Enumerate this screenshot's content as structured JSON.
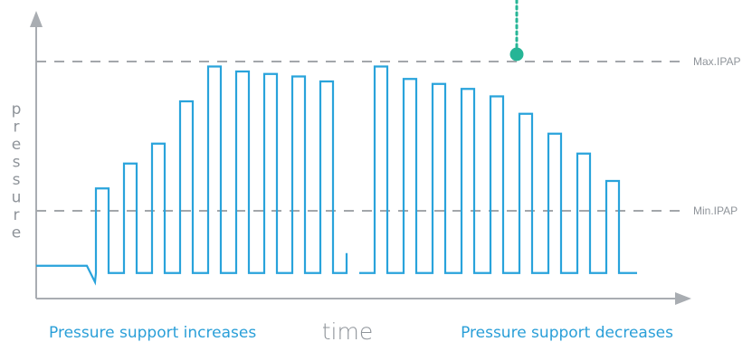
{
  "diagram": {
    "type": "line",
    "title": "",
    "y_axis_label": "pressure",
    "x_axis_label": "time",
    "reference_lines": [
      {
        "label": "Max.IPAP",
        "level": 0.88
      },
      {
        "label": "Min.IPAP",
        "level": 0.28
      }
    ],
    "baseline_level": 0.03,
    "phases": [
      {
        "label": "Pressure support increases",
        "pulse_peaks": [
          0.37,
          0.47,
          0.55,
          0.72,
          0.86,
          0.84,
          0.83,
          0.82,
          0.8
        ]
      },
      {
        "label": "Pressure support decreases",
        "pulse_peaks": [
          0.86,
          0.81,
          0.79,
          0.77,
          0.74,
          0.67,
          0.59,
          0.51,
          0.4
        ]
      }
    ],
    "marker": {
      "color": "#26b596"
    },
    "colors": {
      "signal": "#29a3db",
      "axis": "#a9adb2",
      "reference": "#a3a7ab",
      "label_grey": "#8f949a",
      "label_blue": "#2a9fd8"
    }
  }
}
